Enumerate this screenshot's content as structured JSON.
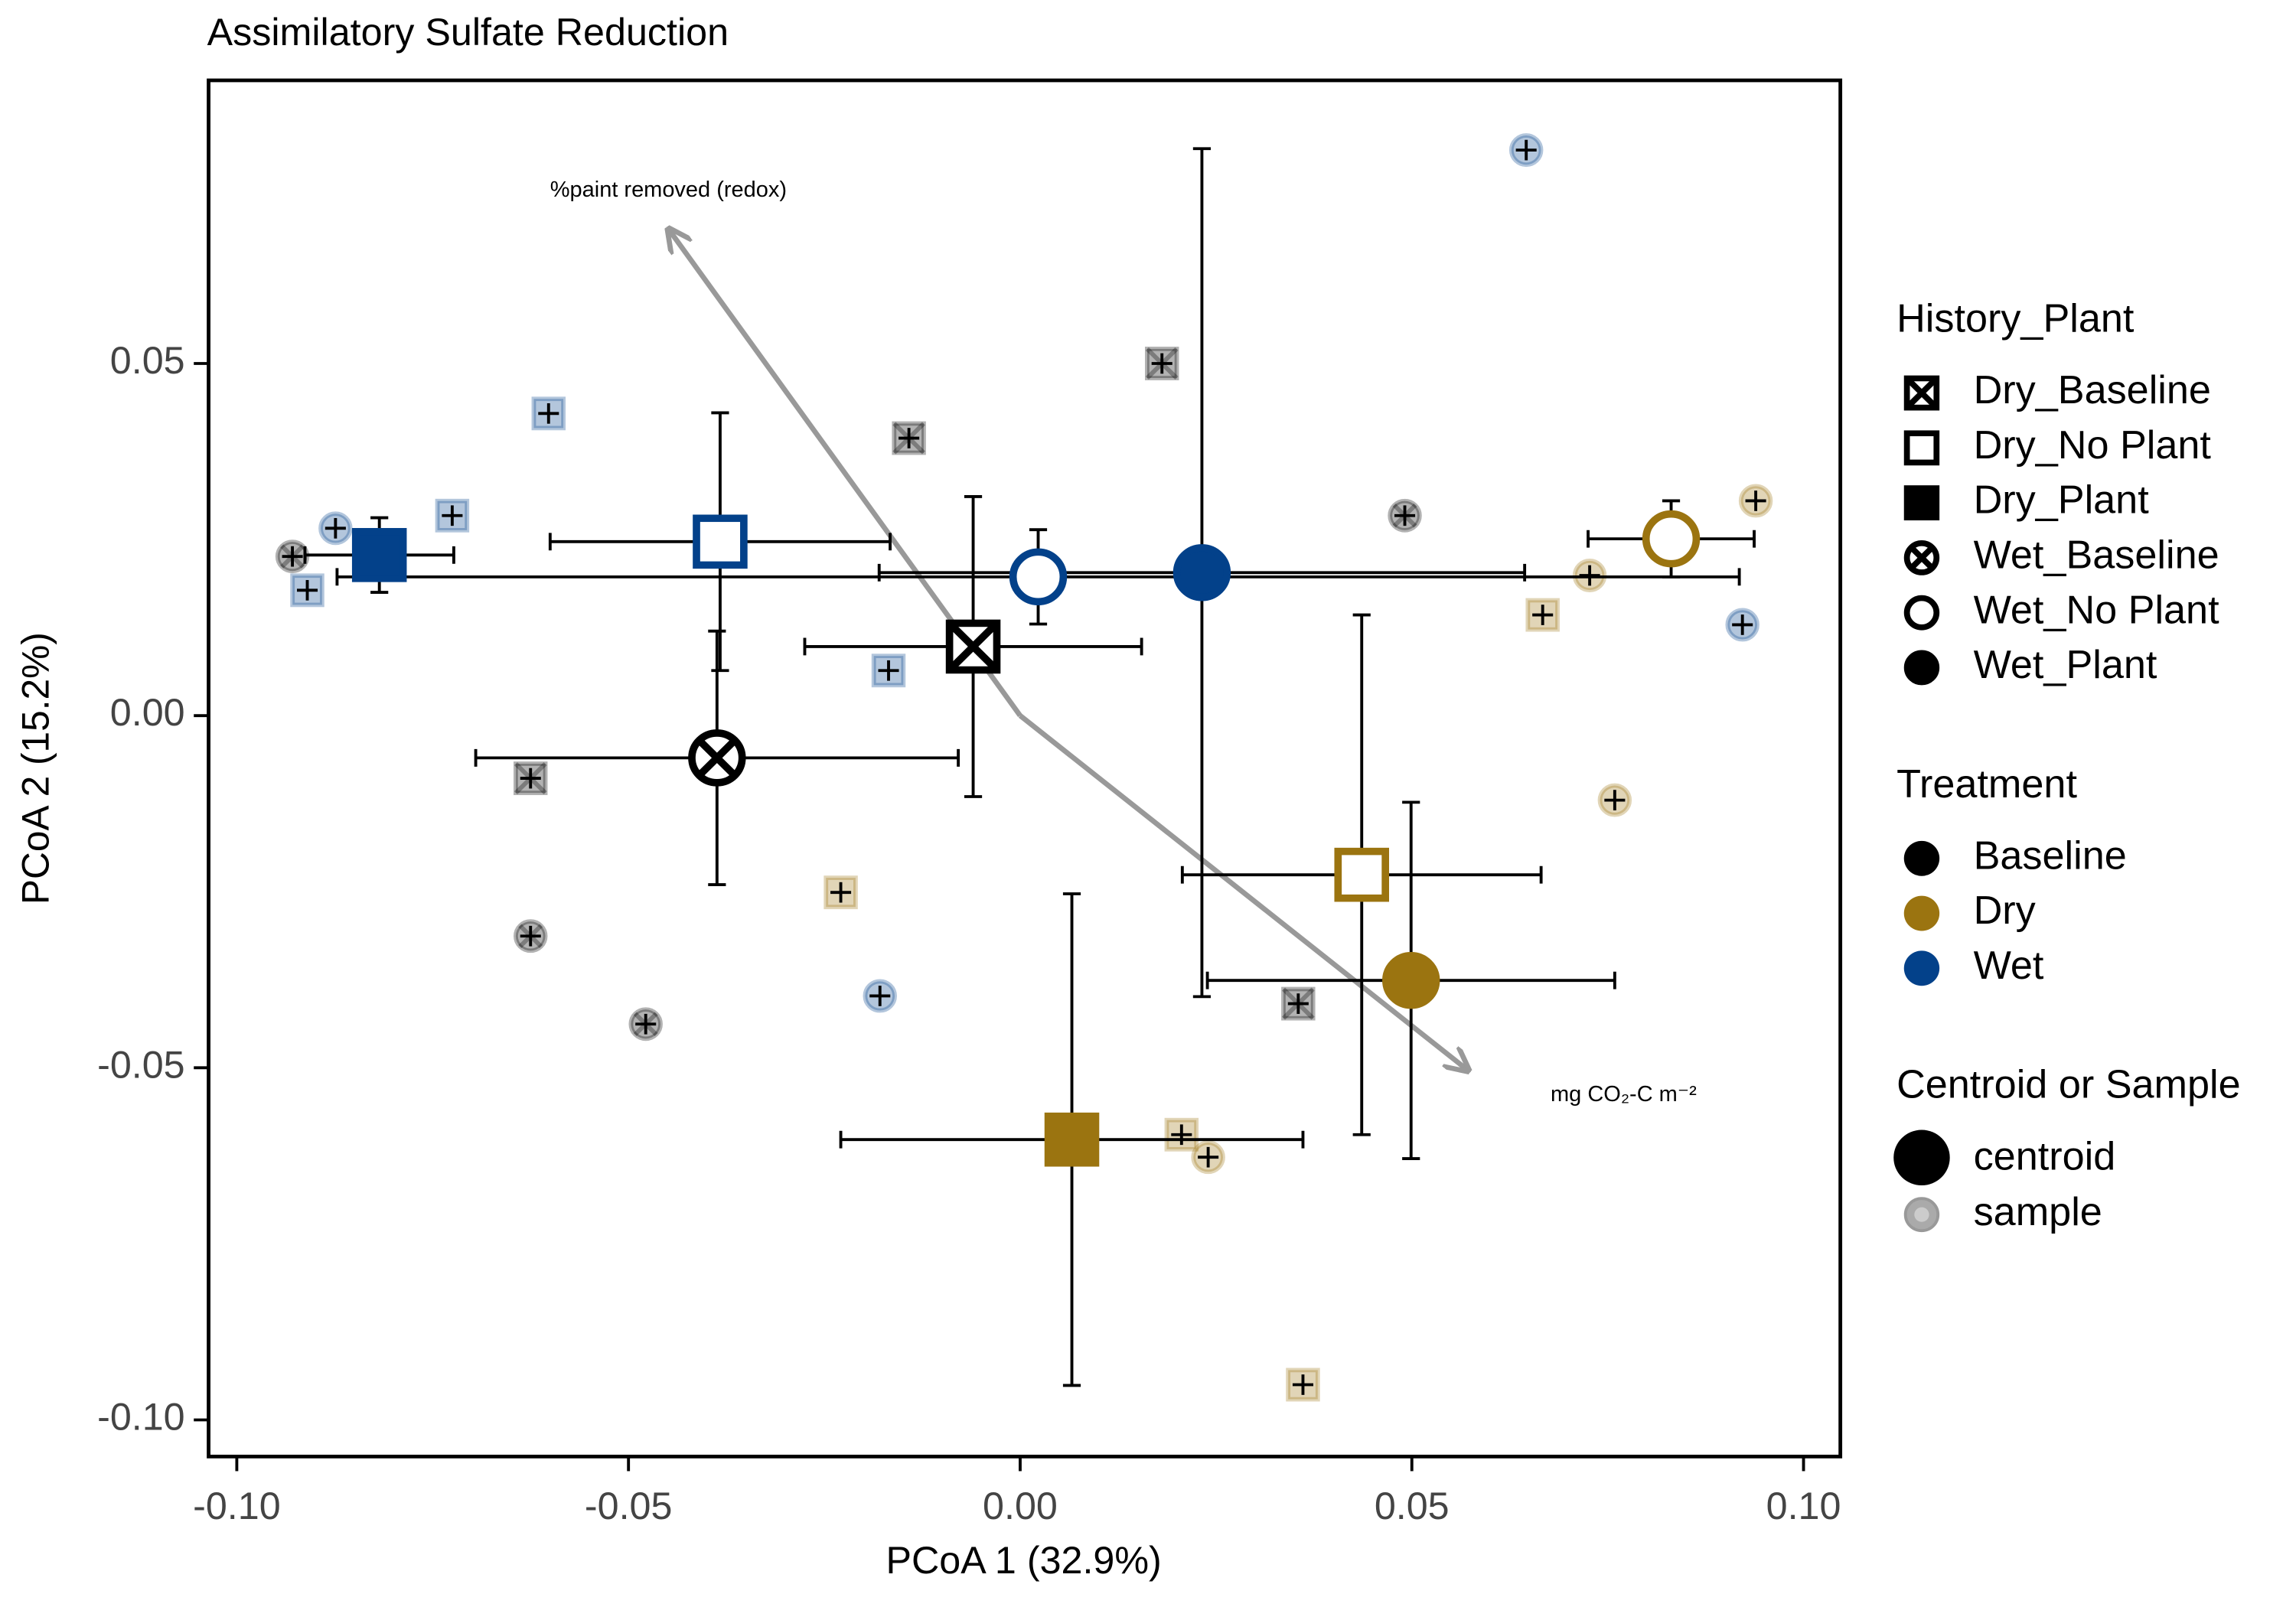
{
  "chart_data": {
    "type": "scatter",
    "title": "Assimilatory Sulfate Reduction",
    "x_label": "PCoA 1 (32.9%)",
    "y_label": "PCoA 2 (15.2%)",
    "xlim": [
      -0.1036,
      0.1047
    ],
    "ylim": [
      -0.1052,
      0.0902
    ],
    "xticks": [
      {
        "value": -0.1,
        "label": "-0.10"
      },
      -0.05,
      {
        "value": 0,
        "label": "0.00"
      },
      0.05,
      {
        "value": 0.1,
        "label": "0.10"
      }
    ],
    "yticks": [
      {
        "value": -0.1,
        "label": "-0.10"
      },
      -0.05,
      {
        "value": 0,
        "label": "0.00"
      },
      0.05
    ],
    "legends": [
      {
        "title": "History_Plant",
        "entries": [
          "Dry_Baseline",
          "Dry_No Plant",
          "Dry_Plant",
          "Wet_Baseline",
          "Wet_No Plant",
          "Wet_Plant"
        ]
      },
      {
        "title": "Treatment",
        "entries": [
          {
            "name": "Baseline",
            "color": "#000000"
          },
          {
            "name": "Dry",
            "color": "#9b7410"
          },
          {
            "name": "Wet",
            "color": "#03418a"
          }
        ]
      },
      {
        "title": "Centroid or Sample",
        "entries": [
          "centroid",
          "sample"
        ]
      }
    ],
    "sample_opacity": 0.3,
    "centroids": [
      {
        "history_plant": "Dry_Baseline",
        "treatment": "Baseline",
        "x": -0.006,
        "y": 0.0098,
        "xerr": 0.0215,
        "yerr": 0.0213
      },
      {
        "history_plant": "Wet_Baseline",
        "treatment": "Baseline",
        "x": -0.0387,
        "y": -0.006,
        "xerr": 0.0308,
        "yerr": 0.018
      },
      {
        "history_plant": "Dry_No Plant",
        "treatment": "Wet",
        "x": -0.0383,
        "y": 0.0247,
        "xerr": 0.0217,
        "yerr": 0.0183
      },
      {
        "history_plant": "Dry_Plant",
        "treatment": "Wet",
        "x": -0.0818,
        "y": 0.0228,
        "xerr": 0.0095,
        "yerr": 0.0053
      },
      {
        "history_plant": "Wet_No Plant",
        "treatment": "Wet",
        "x": 0.0023,
        "y": 0.0197,
        "xerr": 0.0895,
        "yerr": 0.0067
      },
      {
        "history_plant": "Wet_Plant",
        "treatment": "Wet",
        "x": 0.0232,
        "y": 0.0203,
        "xerr": 0.0412,
        "yerr": 0.0602
      },
      {
        "history_plant": "Wet_No Plant",
        "treatment": "Dry",
        "x": 0.0831,
        "y": 0.0251,
        "xerr": 0.0106,
        "yerr": 0.0054
      },
      {
        "history_plant": "Dry_No Plant",
        "treatment": "Dry",
        "x": 0.0436,
        "y": -0.0226,
        "xerr": 0.0229,
        "yerr": 0.0369
      },
      {
        "history_plant": "Wet_Plant",
        "treatment": "Dry",
        "x": 0.0499,
        "y": -0.0376,
        "xerr": 0.026,
        "yerr": 0.0253
      },
      {
        "history_plant": "Dry_Plant",
        "treatment": "Dry",
        "x": 0.0066,
        "y": -0.0602,
        "xerr": 0.0295,
        "yerr": 0.0349
      }
    ],
    "samples": [
      {
        "treatment": "Baseline",
        "marker": "square-x",
        "x": 0.0181,
        "y": 0.05
      },
      {
        "treatment": "Baseline",
        "marker": "square-x",
        "x": -0.0142,
        "y": 0.0394
      },
      {
        "treatment": "Baseline",
        "marker": "circle-x",
        "x": 0.0491,
        "y": 0.0284
      },
      {
        "treatment": "Baseline",
        "marker": "circle-x",
        "x": -0.0929,
        "y": 0.0226
      },
      {
        "treatment": "Baseline",
        "marker": "square-x",
        "x": -0.0625,
        "y": -0.0089
      },
      {
        "treatment": "Baseline",
        "marker": "circle-x",
        "x": -0.0625,
        "y": -0.0313
      },
      {
        "treatment": "Baseline",
        "marker": "circle-x",
        "x": -0.0478,
        "y": -0.0438
      },
      {
        "treatment": "Baseline",
        "marker": "square-x",
        "x": 0.0355,
        "y": -0.0409
      },
      {
        "treatment": "Wet",
        "marker": "circle",
        "x": 0.0646,
        "y": 0.0803
      },
      {
        "treatment": "Wet",
        "marker": "square",
        "x": -0.0602,
        "y": 0.0429
      },
      {
        "treatment": "Wet",
        "marker": "square",
        "x": -0.0725,
        "y": 0.0284
      },
      {
        "treatment": "Wet",
        "marker": "circle",
        "x": -0.0874,
        "y": 0.0266
      },
      {
        "treatment": "Wet",
        "marker": "square",
        "x": -0.091,
        "y": 0.0178
      },
      {
        "treatment": "Wet",
        "marker": "square",
        "x": -0.0168,
        "y": 0.0064
      },
      {
        "treatment": "Wet",
        "marker": "circle",
        "x": -0.0179,
        "y": -0.0398
      },
      {
        "treatment": "Wet",
        "marker": "circle",
        "x": 0.0922,
        "y": 0.0129
      },
      {
        "treatment": "Dry",
        "marker": "circle",
        "x": 0.0939,
        "y": 0.0305
      },
      {
        "treatment": "Dry",
        "marker": "circle",
        "x": 0.0727,
        "y": 0.0199
      },
      {
        "treatment": "Dry",
        "marker": "square",
        "x": 0.0667,
        "y": 0.0143
      },
      {
        "treatment": "Dry",
        "marker": "circle",
        "x": 0.0759,
        "y": -0.012
      },
      {
        "treatment": "Dry",
        "marker": "square",
        "x": -0.0229,
        "y": -0.0251
      },
      {
        "treatment": "Dry",
        "marker": "square",
        "x": 0.0206,
        "y": -0.0595
      },
      {
        "treatment": "Dry",
        "marker": "circle",
        "x": 0.024,
        "y": -0.0627
      },
      {
        "treatment": "Dry",
        "marker": "square",
        "x": 0.0361,
        "y": -0.095
      }
    ],
    "arrows": [
      {
        "label": "%paint removed (redox)",
        "x": -0.0449,
        "y": 0.0691,
        "color": "#999999"
      },
      {
        "label": "mg CO₂-C m⁻²",
        "x": 0.0572,
        "y": -0.0504,
        "color": "#999999"
      }
    ]
  }
}
